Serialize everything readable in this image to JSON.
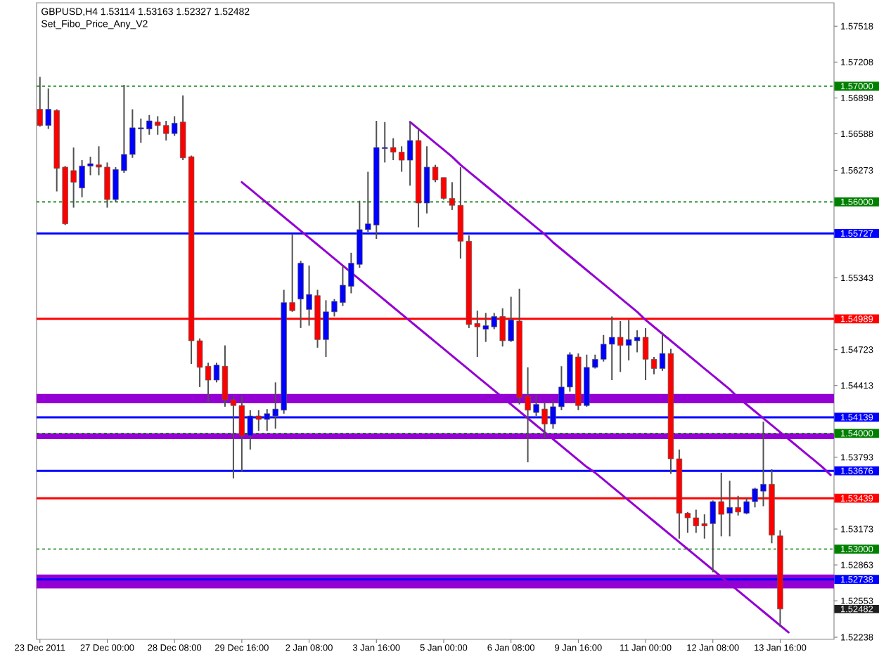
{
  "chart_data": {
    "type": "candlestick",
    "title": "GBPUSD,H4 1.53114 1.53163 1.52327 1.52482",
    "subtitle": "Set_Fibo_Price_Any_V2",
    "categories": [
      "23 Dec 2011",
      null,
      null,
      null,
      null,
      null,
      null,
      null,
      "27 Dec 00:00",
      null,
      null,
      null,
      null,
      null,
      null,
      null,
      "28 Dec 08:00",
      null,
      null,
      null,
      null,
      null,
      null,
      null,
      "29 Dec 16:00",
      null,
      null,
      null,
      null,
      null,
      null,
      null,
      "2 Jan 08:00",
      null,
      null,
      null,
      null,
      null,
      null,
      null,
      "3 Jan 16:00",
      null,
      null,
      null,
      null,
      null,
      null,
      null,
      "5 Jan 00:00",
      null,
      null,
      null,
      null,
      null,
      null,
      null,
      "6 Jan 08:00",
      null,
      null,
      null,
      null,
      null,
      null,
      null,
      "9 Jan 16:00",
      null,
      null,
      null,
      null,
      null,
      null,
      null,
      "11 Jan 00:00",
      null,
      null,
      null,
      null,
      null,
      null,
      null,
      "12 Jan 08:00",
      null,
      null,
      null,
      null,
      null,
      null,
      null,
      "13 Jan 16:00",
      null,
      null,
      null,
      null,
      null,
      null
    ],
    "ylim": [
      1.5222,
      1.5772
    ],
    "yticks": [
      1.57518,
      1.57208,
      1.56898,
      1.56588,
      1.56273,
      1.55343,
      1.54723,
      1.54413,
      1.53793,
      1.53173,
      1.52863,
      1.52553,
      1.52238
    ],
    "bands": [
      {
        "axis": "y",
        "from": 1.5426,
        "to": 1.5434,
        "color": "#9400d3"
      },
      {
        "axis": "y",
        "from": 1.5395,
        "to": 1.54,
        "color": "#9400d3"
      },
      {
        "axis": "y",
        "from": 1.5266,
        "to": 1.5278,
        "color": "#9400d3"
      }
    ],
    "ref_lines": [
      {
        "axis": "y",
        "value": 1.57,
        "label": "1.57000",
        "color": "#008000",
        "line_style": "dashed"
      },
      {
        "axis": "y",
        "value": 1.56,
        "label": "1.56000",
        "color": "#008000",
        "line_style": "dashed"
      },
      {
        "axis": "y",
        "value": 1.55727,
        "label": "1.55727",
        "color": "#0000ff"
      },
      {
        "axis": "y",
        "value": 1.54989,
        "label": "1.54989",
        "color": "#ff0000"
      },
      {
        "axis": "y",
        "value": 1.54139,
        "label": "1.54139",
        "color": "#0000ff"
      },
      {
        "axis": "y",
        "value": 1.54,
        "label": "1.54000",
        "color": "#008000",
        "line_style": "dashed"
      },
      {
        "axis": "y",
        "value": 1.53676,
        "label": "1.53676",
        "color": "#0000ff"
      },
      {
        "axis": "y",
        "value": 1.53439,
        "label": "1.53439",
        "color": "#ff0000"
      },
      {
        "axis": "y",
        "value": 1.53,
        "label": "1.53000",
        "color": "#008000",
        "line_style": "dashed"
      },
      {
        "axis": "y",
        "value": 1.52738,
        "label": "1.52738",
        "color": "#0000ff"
      }
    ],
    "annotations": [
      "1.52482"
    ],
    "series": [
      {
        "ohlc": [
          [
            1.568,
            1.5708,
            1.5665,
            1.5666
          ],
          [
            1.5666,
            1.5698,
            1.5663,
            1.568
          ],
          [
            1.5679,
            1.568,
            1.5609,
            1.5629
          ],
          [
            1.563,
            1.5631,
            1.558,
            1.5581
          ],
          [
            1.5627,
            1.5647,
            1.5595,
            1.5617
          ],
          [
            1.5612,
            1.5636,
            1.5604,
            1.5631
          ],
          [
            1.5631,
            1.5639,
            1.5623,
            1.5633
          ],
          [
            1.5632,
            1.5648,
            1.5623,
            1.563
          ],
          [
            1.563,
            1.5634,
            1.5595,
            1.5602
          ],
          [
            1.5602,
            1.563,
            1.56,
            1.5628
          ],
          [
            1.5627,
            1.5701,
            1.5625,
            1.5641
          ],
          [
            1.5641,
            1.568,
            1.5638,
            1.5664
          ],
          [
            1.5663,
            1.5672,
            1.5651,
            1.5664
          ],
          [
            1.5663,
            1.5675,
            1.5658,
            1.567
          ],
          [
            1.5669,
            1.5674,
            1.5658,
            1.5666
          ],
          [
            1.5666,
            1.567,
            1.5653,
            1.5659
          ],
          [
            1.5659,
            1.5674,
            1.5657,
            1.5668
          ],
          [
            1.5669,
            1.5692,
            1.5636,
            1.5638
          ],
          [
            1.5639,
            1.564,
            1.546,
            1.548
          ],
          [
            1.548,
            1.5482,
            1.544,
            1.5457
          ],
          [
            1.5458,
            1.5461,
            1.5427,
            1.5446
          ],
          [
            1.5446,
            1.5461,
            1.5444,
            1.5459
          ],
          [
            1.5458,
            1.5476,
            1.5423,
            1.5429
          ],
          [
            1.5429,
            1.5432,
            1.5361,
            1.5424
          ],
          [
            1.5424,
            1.5432,
            1.5367,
            1.5398
          ],
          [
            1.5398,
            1.542,
            1.5386,
            1.5415
          ],
          [
            1.5415,
            1.542,
            1.5402,
            1.5412
          ],
          [
            1.5412,
            1.5421,
            1.5402,
            1.5417
          ],
          [
            1.5415,
            1.5444,
            1.5404,
            1.5421
          ],
          [
            1.542,
            1.5524,
            1.5417,
            1.5513
          ],
          [
            1.5513,
            1.5572,
            1.5505,
            1.5506
          ],
          [
            1.5516,
            1.5549,
            1.5491,
            1.5547
          ],
          [
            1.5507,
            1.5545,
            1.5493,
            1.552
          ],
          [
            1.5519,
            1.5524,
            1.5474,
            1.5481
          ],
          [
            1.5481,
            1.5515,
            1.5466,
            1.5505
          ],
          [
            1.5505,
            1.5516,
            1.5501,
            1.5514
          ],
          [
            1.5513,
            1.5545,
            1.551,
            1.5528
          ],
          [
            1.5527,
            1.5556,
            1.5521,
            1.5547
          ],
          [
            1.5546,
            1.5601,
            1.5543,
            1.5576
          ],
          [
            1.5576,
            1.5626,
            1.5574,
            1.5581
          ],
          [
            1.558,
            1.567,
            1.5568,
            1.5647
          ],
          [
            1.5646,
            1.5669,
            1.5634,
            1.5647
          ],
          [
            1.5647,
            1.5655,
            1.5636,
            1.5643
          ],
          [
            1.5643,
            1.5648,
            1.5626,
            1.5636
          ],
          [
            1.5636,
            1.5669,
            1.5614,
            1.5653
          ],
          [
            1.5653,
            1.5663,
            1.5578,
            1.5599
          ],
          [
            1.5599,
            1.5648,
            1.559,
            1.563
          ],
          [
            1.563,
            1.5632,
            1.5617,
            1.5619
          ],
          [
            1.5621,
            1.5621,
            1.5602,
            1.5603
          ],
          [
            1.5603,
            1.5617,
            1.5593,
            1.5597
          ],
          [
            1.5597,
            1.563,
            1.5551,
            1.5566
          ],
          [
            1.5566,
            1.5571,
            1.5491,
            1.5494
          ],
          [
            1.5495,
            1.5506,
            1.5466,
            1.5492
          ],
          [
            1.549,
            1.5504,
            1.5479,
            1.5493
          ],
          [
            1.5492,
            1.5504,
            1.549,
            1.5501
          ],
          [
            1.5501,
            1.5508,
            1.5475,
            1.548
          ],
          [
            1.548,
            1.5518,
            1.5479,
            1.5498
          ],
          [
            1.5497,
            1.5525,
            1.5425,
            1.5431
          ],
          [
            1.5432,
            1.5457,
            1.5375,
            1.542
          ],
          [
            1.5418,
            1.5433,
            1.5415,
            1.5425
          ],
          [
            1.5421,
            1.5427,
            1.5396,
            1.5408
          ],
          [
            1.5408,
            1.5428,
            1.5404,
            1.5423
          ],
          [
            1.5423,
            1.5458,
            1.542,
            1.544
          ],
          [
            1.544,
            1.547,
            1.5436,
            1.5468
          ],
          [
            1.5466,
            1.5469,
            1.542,
            1.5424
          ],
          [
            1.5424,
            1.5468,
            1.5423,
            1.5457
          ],
          [
            1.5457,
            1.5468,
            1.5456,
            1.5464
          ],
          [
            1.5464,
            1.5485,
            1.5462,
            1.5477
          ],
          [
            1.5477,
            1.5501,
            1.5446,
            1.5483
          ],
          [
            1.5483,
            1.5497,
            1.5453,
            1.5476
          ],
          [
            1.5476,
            1.5498,
            1.5463,
            1.5481
          ],
          [
            1.548,
            1.5489,
            1.547,
            1.5483
          ],
          [
            1.5483,
            1.5491,
            1.5446,
            1.5464
          ],
          [
            1.5464,
            1.5466,
            1.5451,
            1.5456
          ],
          [
            1.5456,
            1.5487,
            1.5454,
            1.5469
          ],
          [
            1.5469,
            1.5473,
            1.5365,
            1.5378
          ],
          [
            1.5378,
            1.5386,
            1.5309,
            1.5331
          ],
          [
            1.5331,
            1.5332,
            1.5314,
            1.5327
          ],
          [
            1.5327,
            1.5334,
            1.5314,
            1.532
          ],
          [
            1.5322,
            1.533,
            1.5309,
            1.532
          ],
          [
            1.5322,
            1.5342,
            1.528,
            1.5341
          ],
          [
            1.5341,
            1.5366,
            1.5311,
            1.533
          ],
          [
            1.5331,
            1.5359,
            1.5311,
            1.5336
          ],
          [
            1.5336,
            1.5346,
            1.5329,
            1.5332
          ],
          [
            1.5331,
            1.5344,
            1.533,
            1.5341
          ],
          [
            1.5341,
            1.5353,
            1.5336,
            1.5352
          ],
          [
            1.535,
            1.541,
            1.5337,
            1.5356
          ],
          [
            1.5356,
            1.5369,
            1.5305,
            1.5312
          ],
          [
            1.53114,
            1.53163,
            1.52327,
            1.52482
          ],
          null,
          null,
          null,
          null,
          null,
          null
        ],
        "colors": [
          "#ff0000",
          "#0000ff",
          "#ff0000",
          "#ff0000",
          "#ff0000",
          "#0000ff",
          "#0000ff",
          "#ff0000",
          "#ff0000",
          "#0000ff",
          "#0000ff",
          "#0000ff",
          "#0000ff",
          "#0000ff",
          "#ff0000",
          "#ff0000",
          "#0000ff",
          "#ff0000",
          "#ff0000",
          "#ff0000",
          "#ff0000",
          "#0000ff",
          "#ff0000",
          "#ff0000",
          "#ff0000",
          "#0000ff",
          "#ff0000",
          "#0000ff",
          "#0000ff",
          "#0000ff",
          "#ff0000",
          "#0000ff",
          "#0000ff",
          "#ff0000",
          "#0000ff",
          "#0000ff",
          "#0000ff",
          "#0000ff",
          "#0000ff",
          "#0000ff",
          "#0000ff",
          "#0000ff",
          "#ff0000",
          "#ff0000",
          "#0000ff",
          "#ff0000",
          "#0000ff",
          "#ff0000",
          "#ff0000",
          "#ff0000",
          "#ff0000",
          "#ff0000",
          "#ff0000",
          "#0000ff",
          "#0000ff",
          "#ff0000",
          "#0000ff",
          "#ff0000",
          "#ff0000",
          "#0000ff",
          "#ff0000",
          "#0000ff",
          "#0000ff",
          "#0000ff",
          "#ff0000",
          "#0000ff",
          "#0000ff",
          "#0000ff",
          "#0000ff",
          "#ff0000",
          "#0000ff",
          "#0000ff",
          "#ff0000",
          "#ff0000",
          "#0000ff",
          "#ff0000",
          "#ff0000",
          "#ff0000",
          "#ff0000",
          "#ff0000",
          "#0000ff",
          "#ff0000",
          "#0000ff",
          "#ff0000",
          "#0000ff",
          "#0000ff",
          "#0000ff",
          "#ff0000",
          "#ff0000",
          null,
          null,
          null,
          null,
          null,
          null
        ]
      },
      {
        "type": "line",
        "color": "#9400d3",
        "values": [
          null,
          null,
          null,
          null,
          null,
          null,
          null,
          null,
          null,
          null,
          null,
          null,
          null,
          null,
          null,
          null,
          null,
          null,
          null,
          null,
          null,
          null,
          null,
          null,
          1.5617,
          1.5611,
          1.5605,
          1.5599,
          1.5593,
          1.5587,
          1.5581,
          1.5575,
          1.5569,
          1.5563,
          1.5557,
          1.5551,
          1.5545,
          1.5539,
          1.5533,
          1.5527,
          1.5521,
          1.5515,
          1.5509,
          1.5503,
          1.5497,
          1.5491,
          1.5485,
          1.5479,
          1.5473,
          1.5467,
          1.5461,
          1.5455,
          1.5449,
          1.5443,
          1.5437,
          1.5431,
          1.5425,
          1.5419,
          1.5413,
          1.5407,
          1.5401,
          1.5395,
          1.5389,
          1.5383,
          1.5377,
          1.5371,
          1.5366,
          1.536,
          1.5354,
          1.5348,
          1.5342,
          1.5336,
          1.533,
          1.5324,
          1.5318,
          1.5312,
          1.5306,
          1.53,
          1.5294,
          1.5288,
          1.5282,
          1.5276,
          1.527,
          1.5264,
          1.5258,
          1.5252,
          1.5246,
          1.524,
          1.5234,
          1.5228,
          null,
          null,
          null,
          null,
          null
        ]
      },
      {
        "type": "line",
        "color": "#9400d3",
        "values": [
          null,
          null,
          null,
          null,
          null,
          null,
          null,
          null,
          null,
          null,
          null,
          null,
          null,
          null,
          null,
          null,
          null,
          null,
          null,
          null,
          null,
          null,
          null,
          null,
          null,
          null,
          null,
          null,
          null,
          null,
          null,
          null,
          null,
          null,
          null,
          null,
          null,
          null,
          null,
          null,
          null,
          null,
          null,
          null,
          1.5669,
          1.5663,
          1.5657,
          1.5651,
          1.5645,
          1.5639,
          1.5632,
          1.5626,
          1.562,
          1.5614,
          1.5608,
          1.5602,
          1.5596,
          1.559,
          1.5584,
          1.5578,
          1.5572,
          1.5565,
          1.5559,
          1.5553,
          1.5547,
          1.5541,
          1.5535,
          1.5529,
          1.5523,
          1.5517,
          1.5511,
          1.5505,
          1.5498,
          1.5492,
          1.5486,
          1.548,
          1.5474,
          1.5468,
          1.5462,
          1.5456,
          1.545,
          1.5444,
          1.5438,
          1.5431,
          1.5425,
          1.5419,
          1.5413,
          1.5407,
          1.5401,
          1.5395,
          1.5389,
          1.5383,
          1.5377,
          1.5371,
          1.5364
        ]
      }
    ]
  }
}
